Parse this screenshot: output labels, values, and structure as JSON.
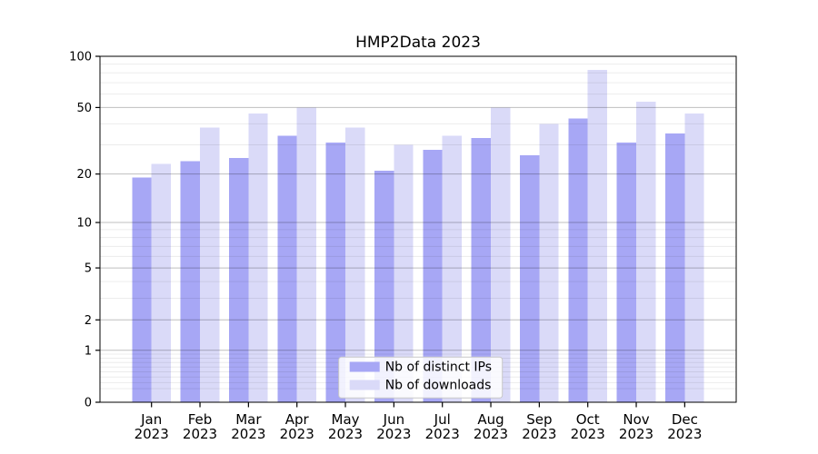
{
  "chart_data": {
    "type": "bar",
    "title": "HMP2Data 2023",
    "x_year_label": "2023",
    "categories": [
      "Jan",
      "Feb",
      "Mar",
      "Apr",
      "May",
      "Jun",
      "Jul",
      "Aug",
      "Sep",
      "Oct",
      "Nov",
      "Dec"
    ],
    "series": [
      {
        "name": "Nb of distinct IPs",
        "color": "#a7a7f5",
        "values": [
          19,
          24,
          25,
          34,
          31,
          21,
          28,
          33,
          26,
          43,
          31,
          35
        ]
      },
      {
        "name": "Nb of downloads",
        "color": "#dadaf8",
        "values": [
          23,
          38,
          46,
          50,
          38,
          30,
          34,
          50,
          40,
          83,
          54,
          46
        ]
      }
    ],
    "yscale": "log1p",
    "ylim": [
      0,
      100
    ],
    "y_ticks": [
      0,
      1,
      2,
      5,
      10,
      20,
      50,
      100
    ],
    "y_minor_gridlines": [
      0.2,
      0.3,
      0.4,
      0.5,
      0.6,
      0.7,
      0.8,
      0.9,
      3,
      4,
      6,
      7,
      8,
      9,
      30,
      40,
      60,
      70,
      80,
      90
    ],
    "grid": true,
    "legend": {
      "position": "lower center",
      "entries": [
        "Nb of distinct IPs",
        "Nb of downloads"
      ]
    },
    "colors": {
      "major_gridline": "rgba(0,0,0,0.25)",
      "minor_gridline": "rgba(0,0,0,0.075)",
      "axis": "#000000",
      "legend_border": "#c8c8c8"
    }
  }
}
